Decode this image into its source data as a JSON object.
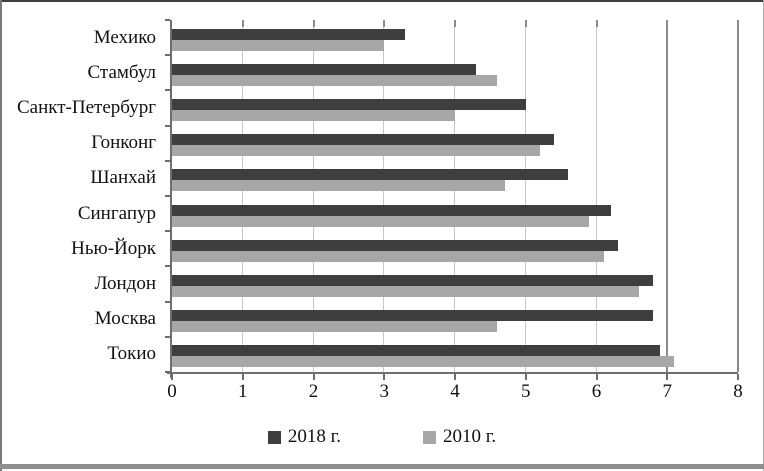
{
  "chart_data": {
    "type": "bar",
    "orientation": "horizontal",
    "title": "",
    "xlabel": "",
    "ylabel": "",
    "categories": [
      "Мехико",
      "Стамбул",
      "Санкт-Петербург",
      "Гонконг",
      "Шанхай",
      "Сингапур",
      "Нью-Йорк",
      "Лондон",
      "Москва",
      "Токио"
    ],
    "series": [
      {
        "name": "2018 г.",
        "color": "#3e3e3e",
        "values": [
          3.3,
          4.3,
          5.0,
          5.4,
          5.6,
          6.2,
          6.3,
          6.8,
          6.8,
          6.9
        ]
      },
      {
        "name": "2010 г.",
        "color": "#a7a7a7",
        "values": [
          3.0,
          4.6,
          4.0,
          5.2,
          4.7,
          5.9,
          6.1,
          6.6,
          4.6,
          7.1
        ]
      }
    ],
    "xlim": [
      0,
      8
    ],
    "xticks": [
      "0",
      "1",
      "2",
      "3",
      "4",
      "5",
      "6",
      "7",
      "8"
    ],
    "grid": true,
    "legend_position": "bottom"
  },
  "colors": {
    "axis": "#6e6e6e",
    "grid_light": "#c7c7c7",
    "grid_dark": "#8a8a8a",
    "grid_dark_ticks": [
      7,
      8
    ],
    "text": "#111111"
  }
}
